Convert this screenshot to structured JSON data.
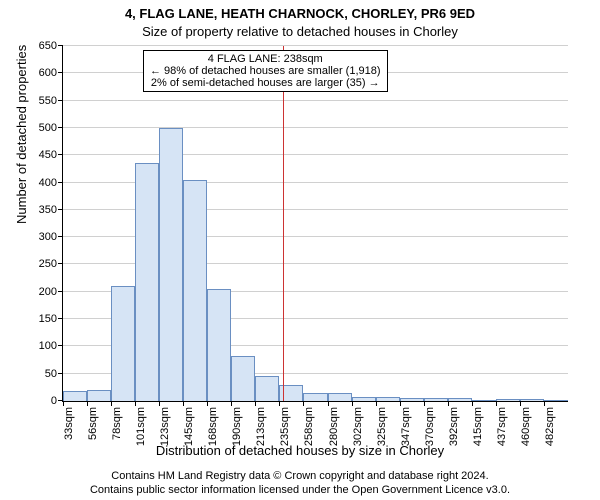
{
  "titles": {
    "line1": "4, FLAG LANE, HEATH CHARNOCK, CHORLEY, PR6 9ED",
    "line2": "Size of property relative to detached houses in Chorley"
  },
  "chart": {
    "type": "histogram",
    "xlabel": "Distribution of detached houses by size in Chorley",
    "ylabel": "Number of detached properties",
    "ylim": [
      0,
      650
    ],
    "ytick_step": 50,
    "yticks": [
      0,
      50,
      100,
      150,
      200,
      250,
      300,
      350,
      400,
      450,
      500,
      550,
      600,
      650
    ],
    "xtick_labels": [
      "33sqm",
      "56sqm",
      "78sqm",
      "101sqm",
      "123sqm",
      "145sqm",
      "168sqm",
      "190sqm",
      "213sqm",
      "235sqm",
      "258sqm",
      "280sqm",
      "302sqm",
      "325sqm",
      "347sqm",
      "370sqm",
      "392sqm",
      "415sqm",
      "437sqm",
      "460sqm",
      "482sqm"
    ],
    "bar_values": [
      18,
      20,
      210,
      435,
      500,
      405,
      205,
      82,
      45,
      30,
      15,
      15,
      8,
      8,
      5,
      5,
      5,
      0,
      3,
      3,
      0
    ],
    "bar_fill": "#d6e4f5",
    "bar_stroke": "#6a8fc2",
    "grid_color": "#d0d0d0",
    "background_color": "#ffffff",
    "font_family": "Arial",
    "tick_fontsize": 11,
    "label_fontsize": 13
  },
  "marker": {
    "x_value_sqm": 238,
    "color": "#cc3333",
    "annotation_lines": [
      "4 FLAG LANE: 238sqm",
      "← 98% of detached houses are smaller (1,918)",
      "2% of semi-detached houses are larger (35) →"
    ]
  },
  "footer": {
    "line1": "Contains HM Land Registry data © Crown copyright and database right 2024.",
    "line2": "Contains public sector information licensed under the Open Government Licence v3.0."
  }
}
